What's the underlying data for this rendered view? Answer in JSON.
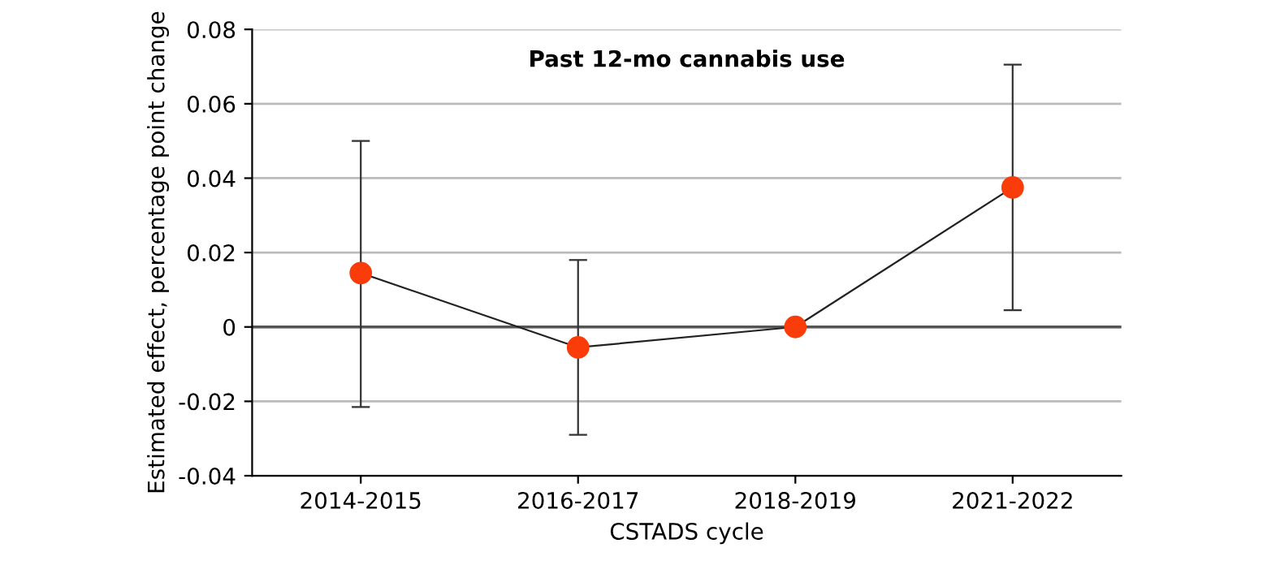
{
  "chart_data": {
    "type": "line",
    "title": "Past 12-mo cannabis use",
    "xlabel": "CSTADS cycle",
    "ylabel": "Estimated effect, percentage point change",
    "categories": [
      "2014-2015",
      "2016-2017",
      "2018-2019",
      "2021-2022"
    ],
    "series": [
      {
        "color": "#fa3c0a",
        "values": [
          0.0145,
          -0.0055,
          0,
          0.0375
        ],
        "errors": [
          [
            -0.0215,
            0.05
          ],
          [
            -0.029,
            0.018
          ],
          null,
          [
            0.0045,
            0.0705
          ]
        ]
      }
    ],
    "ylim": [
      -0.04,
      0.08
    ],
    "yticks": [
      -0.04,
      -0.02,
      0,
      0.02,
      0.04,
      0.06,
      0.08
    ],
    "grid": "y",
    "marker": "circle",
    "line_style": "solid",
    "legend": false,
    "ref_lines": [
      {
        "axis": "y",
        "value": 0,
        "color": "#555555"
      }
    ]
  }
}
